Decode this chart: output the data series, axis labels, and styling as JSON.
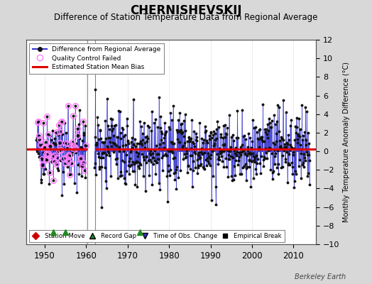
{
  "title": "CHERNISHEVSKIJ",
  "subtitle": "Difference of Station Temperature Data from Regional Average",
  "ylabel_right": "Monthly Temperature Anomaly Difference (°C)",
  "ylim": [
    -10,
    12
  ],
  "xlim": [
    1945.5,
    2015.5
  ],
  "yticks": [
    -10,
    -8,
    -6,
    -4,
    -2,
    0,
    2,
    4,
    6,
    8,
    10,
    12
  ],
  "xticks": [
    1950,
    1960,
    1970,
    1980,
    1990,
    2000,
    2010
  ],
  "bias_value": 0.25,
  "gap_start": 1960.3,
  "gap_end": 1962.2,
  "record_gaps": [
    1952.0,
    1955.0,
    1973.0
  ],
  "bg_color": "#d8d8d8",
  "plot_bg_color": "#ffffff",
  "line_color": "#3333cc",
  "bias_color": "#dd0000",
  "qc_color": "#ff80ff",
  "dot_color": "#111111",
  "title_fontsize": 12,
  "subtitle_fontsize": 8.5,
  "watermark": "Berkeley Earth",
  "period1_start": 1948,
  "period1_end": 1960,
  "period2_start": 1962,
  "period2_end": 2014
}
